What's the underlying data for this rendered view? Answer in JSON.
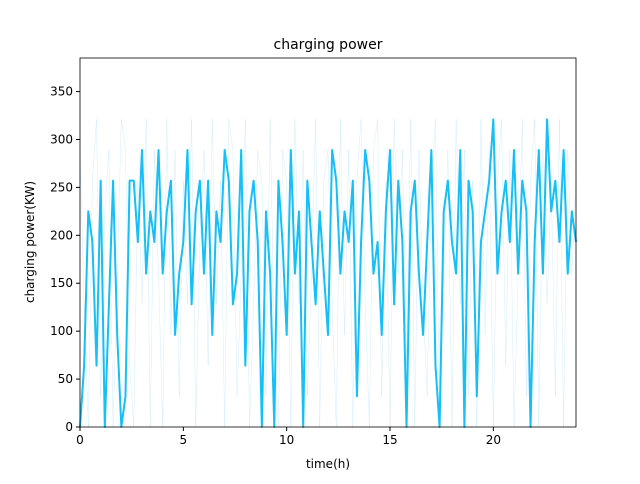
{
  "chart_data": {
    "type": "line",
    "title": "charging power",
    "xlabel": "time(h)",
    "ylabel": "charging power(KW)",
    "xlim": [
      0,
      24
    ],
    "xticks": [
      0,
      5,
      10,
      15,
      20
    ],
    "ylim": [
      0,
      385
    ],
    "yticks": [
      0,
      50,
      100,
      150,
      200,
      250,
      300,
      350
    ],
    "x": [
      0,
      0.2,
      0.4,
      0.6,
      0.8,
      1,
      1.2,
      1.4,
      1.6,
      1.8,
      2,
      2.2,
      2.4,
      2.6,
      2.8,
      3,
      3.2,
      3.4,
      3.6,
      3.8,
      4,
      4.2,
      4.4,
      4.6,
      4.8,
      5,
      5.2,
      5.4,
      5.6,
      5.8,
      6,
      6.2,
      6.4,
      6.6,
      6.8,
      7,
      7.2,
      7.4,
      7.6,
      7.8,
      8,
      8.2,
      8.4,
      8.6,
      8.8,
      9,
      9.2,
      9.4,
      9.6,
      9.8,
      10,
      10.2,
      10.4,
      10.6,
      10.8,
      11,
      11.2,
      11.4,
      11.6,
      11.8,
      12,
      12.2,
      12.4,
      12.6,
      12.8,
      13,
      13.2,
      13.4,
      13.6,
      13.8,
      14,
      14.2,
      14.4,
      14.6,
      14.8,
      15,
      15.2,
      15.4,
      15.6,
      15.8,
      16,
      16.2,
      16.4,
      16.6,
      16.8,
      17,
      17.2,
      17.4,
      17.6,
      17.8,
      18,
      18.2,
      18.4,
      18.6,
      18.8,
      19,
      19.2,
      19.4,
      19.6,
      19.8,
      20,
      20.2,
      20.4,
      20.6,
      20.8,
      21,
      21.2,
      21.4,
      21.6,
      21.8,
      22,
      22.2,
      22.4,
      22.6,
      22.8,
      23,
      23.2,
      23.4,
      23.6,
      23.8,
      24
    ],
    "series": [
      {
        "color": "#87cefa",
        "linewidth": 0.5,
        "opacity": 0.35,
        "values": [
          289,
          128,
          0,
          257,
          321,
          32,
          225,
          289,
          0,
          160,
          321,
          289,
          64,
          0,
          257,
          128,
          321,
          0,
          289,
          160,
          0,
          321,
          96,
          289,
          32,
          257,
          128,
          321,
          0,
          193,
          289,
          64,
          321,
          128,
          257,
          0,
          321,
          289,
          32,
          160,
          321,
          0,
          128,
          289,
          257,
          32,
          321,
          96,
          0,
          289,
          257,
          0,
          321,
          128,
          289,
          32,
          160,
          321,
          0,
          257,
          289,
          128,
          0,
          321,
          96,
          289,
          0,
          257,
          321,
          128,
          0,
          289,
          321,
          32,
          257,
          0,
          321,
          160,
          289,
          64,
          321,
          0,
          289,
          128,
          32,
          257,
          321,
          0,
          160,
          289,
          0,
          321,
          128,
          289,
          32,
          257,
          0,
          321,
          96,
          289,
          0,
          257,
          321,
          64,
          289,
          0,
          160,
          321,
          32,
          257,
          321,
          0,
          289,
          128,
          257,
          32,
          321,
          0,
          289,
          160,
          257
        ]
      },
      {
        "color": "#16bff5",
        "linewidth": 2,
        "opacity": 1,
        "values": [
          0,
          64,
          225,
          193,
          64,
          257,
          0,
          128,
          257,
          96,
          0,
          32,
          257,
          257,
          193,
          289,
          160,
          225,
          193,
          289,
          160,
          225,
          257,
          96,
          160,
          193,
          289,
          128,
          225,
          257,
          160,
          257,
          96,
          225,
          193,
          289,
          257,
          128,
          160,
          289,
          64,
          225,
          257,
          193,
          0,
          225,
          160,
          0,
          257,
          193,
          96,
          289,
          160,
          225,
          0,
          257,
          193,
          128,
          225,
          160,
          96,
          289,
          257,
          160,
          225,
          193,
          257,
          32,
          193,
          289,
          257,
          160,
          193,
          96,
          225,
          289,
          128,
          257,
          193,
          0,
          225,
          257,
          160,
          96,
          193,
          289,
          64,
          0,
          225,
          257,
          193,
          160,
          289,
          0,
          257,
          225,
          32,
          193,
          225,
          257,
          321,
          160,
          225,
          257,
          193,
          289,
          160,
          257,
          225,
          0,
          193,
          289,
          160,
          321,
          225,
          257,
          193,
          289,
          160,
          225,
          193
        ]
      }
    ]
  }
}
